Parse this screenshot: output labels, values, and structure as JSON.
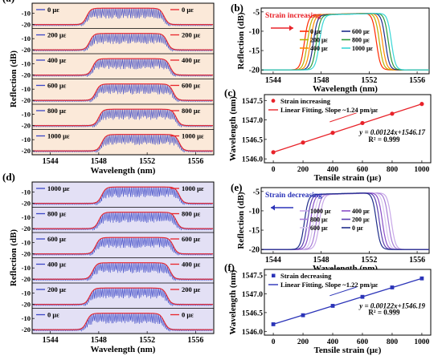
{
  "chart_data": [
    {
      "panel": "(a)",
      "type": "line",
      "xlabel": "Wavelength (nm)",
      "ylabel": "Reflection (dB)",
      "xticks": [
        "1544",
        "1548",
        "1552",
        "1556"
      ],
      "xlim": [
        1542.5,
        1557.5
      ],
      "yticks": [
        "-10",
        "-20"
      ],
      "background": "#fbe9d9",
      "subplots": [
        {
          "label": "0 με",
          "left": 1547.0,
          "right": 1553.4
        },
        {
          "label": "200 με",
          "left": 1547.25,
          "right": 1553.65
        },
        {
          "label": "400 με",
          "left": 1547.5,
          "right": 1553.9
        },
        {
          "label": "600 με",
          "left": 1547.75,
          "right": 1554.15
        },
        {
          "label": "800 με",
          "left": 1548.0,
          "right": 1554.4
        },
        {
          "label": "1000 με",
          "left": 1548.25,
          "right": 1554.65
        }
      ],
      "series_colors": {
        "measured": "#3a46c6",
        "fit": "#e8232a"
      }
    },
    {
      "panel": "(b)",
      "type": "line",
      "title": "Strain increasing",
      "xlabel": "Wavelength (nm)",
      "ylabel": "Reflection (dB)",
      "xticks": [
        "1544",
        "1548",
        "1552",
        "1556"
      ],
      "yticks": [
        "-5",
        "-10",
        "-15",
        "-20"
      ],
      "xlim": [
        1543,
        1557
      ],
      "ylim": [
        -21,
        -4
      ],
      "legend_placement": "center",
      "series": [
        {
          "name": "0 με",
          "color": "#ff2a00",
          "left": 1546.6,
          "right": 1552.6
        },
        {
          "name": "200 με",
          "color": "#b8b000",
          "left": 1546.85,
          "right": 1552.85
        },
        {
          "name": "400 με",
          "color": "#ff8800",
          "left": 1547.1,
          "right": 1553.1
        },
        {
          "name": "600 με",
          "color": "#1f2d8a",
          "left": 1547.35,
          "right": 1553.35
        },
        {
          "name": "800 με",
          "color": "#2e9a3a",
          "left": 1547.6,
          "right": 1553.6
        },
        {
          "name": "1000 με",
          "color": "#38d6d6",
          "left": 1547.85,
          "right": 1553.85
        }
      ]
    },
    {
      "panel": "(c)",
      "type": "scatter",
      "xlabel": "Tensile strain (με)",
      "ylabel": "Wavelength (nm)",
      "xticks": [
        "0",
        "200",
        "400",
        "600",
        "800",
        "1000"
      ],
      "yticks": [
        "1546.0",
        "1546.5",
        "1547.0",
        "1547.5"
      ],
      "xlim": [
        -60,
        1060
      ],
      "ylim": [
        1545.9,
        1547.65
      ],
      "x": [
        0,
        200,
        400,
        600,
        800,
        1000
      ],
      "y": [
        1546.17,
        1546.42,
        1546.67,
        1546.92,
        1547.16,
        1547.41
      ],
      "fit": {
        "slope": 0.00124,
        "intercept": 1546.17
      },
      "legend": [
        "Strain increasing",
        "Linear Fitting, Slope ~1.24 pm/με"
      ],
      "annotations": [
        "y = 0.00124x+1546.17",
        "R² = 0.999"
      ],
      "color": "#e8232a"
    },
    {
      "panel": "(d)",
      "type": "line",
      "xlabel": "Wavelength (nm)",
      "ylabel": "Reflection (dB)",
      "xticks": [
        "1544",
        "1548",
        "1552",
        "1556"
      ],
      "xlim": [
        1542.5,
        1557.5
      ],
      "yticks": [
        "-10",
        "-20"
      ],
      "background": "#e3e0f5",
      "subplots": [
        {
          "label": "1000 με",
          "left": 1548.25,
          "right": 1554.65
        },
        {
          "label": "800 με",
          "left": 1548.0,
          "right": 1554.4
        },
        {
          "label": "600 με",
          "left": 1547.75,
          "right": 1554.15
        },
        {
          "label": "400 με",
          "left": 1547.5,
          "right": 1553.9
        },
        {
          "label": "200 με",
          "left": 1547.25,
          "right": 1553.65
        },
        {
          "label": "0 με",
          "left": 1547.0,
          "right": 1553.4
        }
      ],
      "series_colors": {
        "measured": "#3a46c6",
        "fit": "#e8232a"
      }
    },
    {
      "panel": "(e)",
      "type": "line",
      "title": "Strain decreasing",
      "xlabel": "Wavelength (nm)",
      "ylabel": "Reflection (dB)",
      "xticks": [
        "1544",
        "1548",
        "1552",
        "1556"
      ],
      "yticks": [
        "-5",
        "-10",
        "-15",
        "-20"
      ],
      "xlim": [
        1543,
        1557
      ],
      "ylim": [
        -21,
        -4
      ],
      "legend_placement": "center",
      "series": [
        {
          "name": "1000 με",
          "color": "#c8a8e8",
          "left": 1547.85,
          "right": 1553.85
        },
        {
          "name": "800 με",
          "color": "#a77cd6",
          "left": 1547.6,
          "right": 1553.6
        },
        {
          "name": "600 με",
          "color": "#d8c8ee",
          "left": 1547.35,
          "right": 1553.35
        },
        {
          "name": "400 με",
          "color": "#8a4fc8",
          "left": 1547.1,
          "right": 1553.1
        },
        {
          "name": "200 με",
          "color": "#5a3fb0",
          "left": 1546.85,
          "right": 1552.85
        },
        {
          "name": "0 με",
          "color": "#1f2d8a",
          "left": 1546.6,
          "right": 1552.6
        }
      ]
    },
    {
      "panel": "(f)",
      "type": "scatter",
      "xlabel": "Tensile strain (με)",
      "ylabel": "Wavelength (nm)",
      "xticks": [
        "0",
        "200",
        "400",
        "600",
        "800",
        "1000"
      ],
      "yticks": [
        "1546.0",
        "1546.5",
        "1547.0",
        "1547.5"
      ],
      "xlim": [
        -60,
        1060
      ],
      "ylim": [
        1545.9,
        1547.65
      ],
      "x": [
        0,
        200,
        400,
        600,
        800,
        1000
      ],
      "y": [
        1546.19,
        1546.43,
        1546.68,
        1546.92,
        1547.17,
        1547.41
      ],
      "fit": {
        "slope": 0.00122,
        "intercept": 1546.19
      },
      "legend": [
        "Strain decreasing",
        "Linear Fitting, Slope ~1.22 pm/με"
      ],
      "annotations": [
        "y = 0.00122x+1546.19",
        "R² = 0.999"
      ],
      "color": "#2b34b8"
    }
  ]
}
